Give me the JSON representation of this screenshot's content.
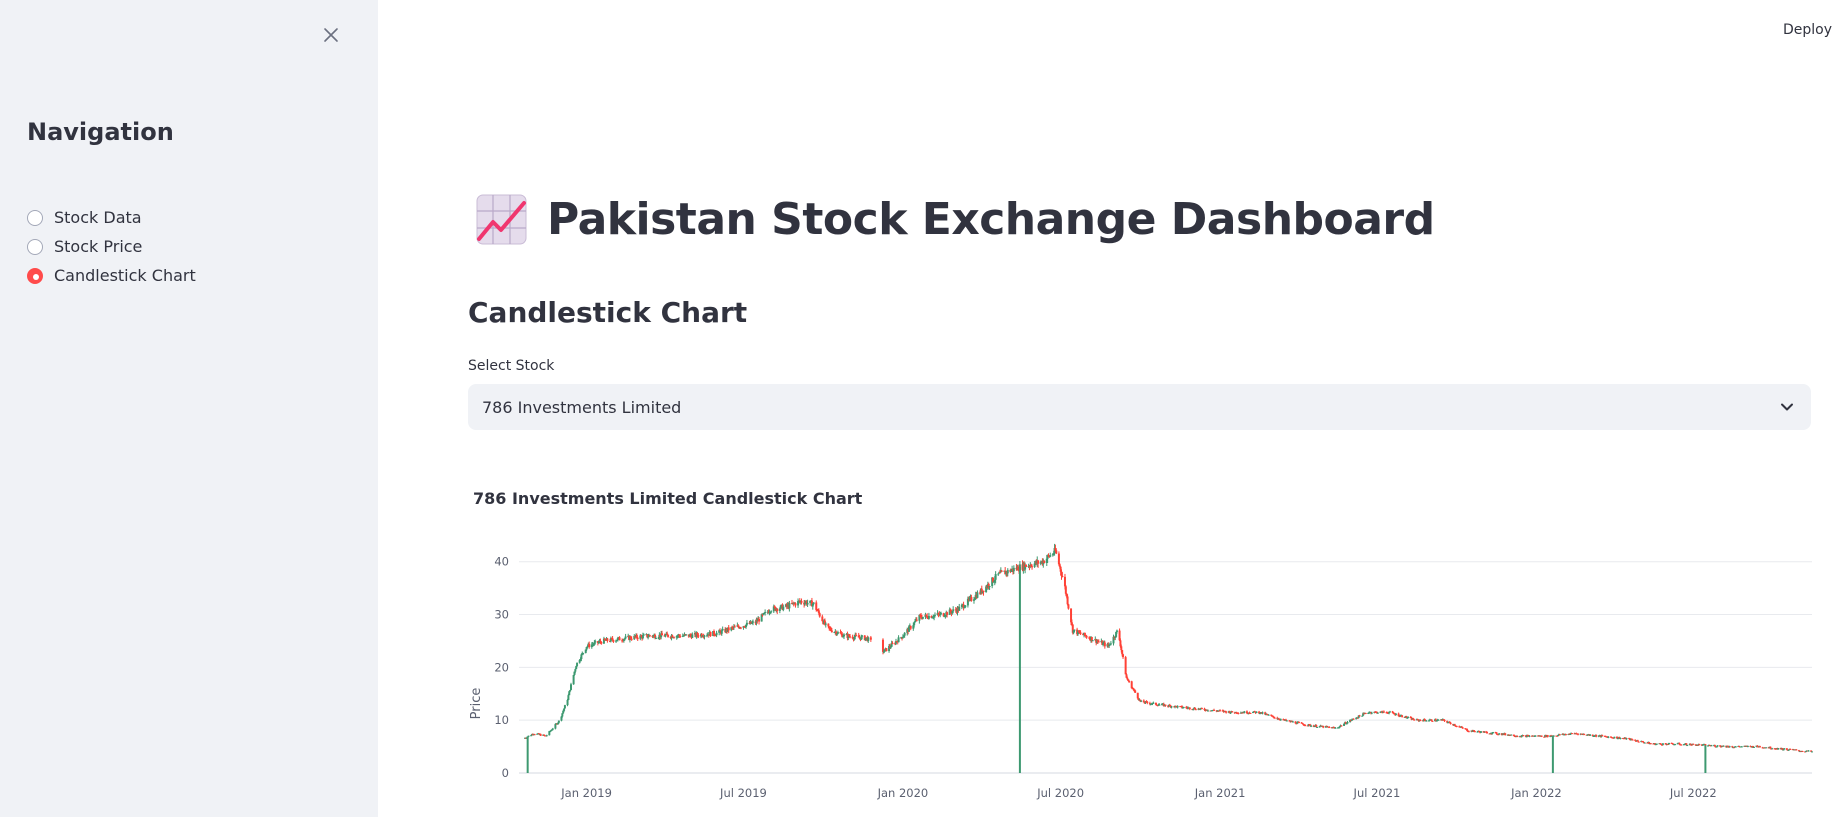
{
  "sidebar": {
    "title": "Navigation",
    "options": [
      "Stock Data",
      "Stock Price",
      "Candlestick Chart"
    ],
    "selected": "Candlestick Chart"
  },
  "header": {
    "deploy_label": "Deploy"
  },
  "main": {
    "title": "Pakistan Stock Exchange Dashboard",
    "icon": "chart-increasing-icon",
    "section_title": "Candlestick Chart",
    "select_label": "Select Stock",
    "select_value": "786 Investments Limited"
  },
  "colors": {
    "accent": "#ff4b4b",
    "increasing": "#3d9970",
    "decreasing": "#ff4136",
    "sidebar_bg": "#f0f2f6",
    "text": "#31333f"
  },
  "chart_data": {
    "type": "candlestick",
    "title": "786 Investments Limited Candlestick Chart",
    "xlabel": "",
    "ylabel": "Price",
    "x_ticks": [
      "Jan 2019",
      "Jul 2019",
      "Jan 2020",
      "Jul 2020",
      "Jan 2021",
      "Jul 2021",
      "Jan 2022",
      "Jul 2022"
    ],
    "y_ticks": [
      0,
      10,
      20,
      30,
      40
    ],
    "xlim": [
      "2018-10-15",
      "2022-11-15"
    ],
    "ylim": [
      0,
      46
    ],
    "grid": true,
    "approx_close_series": [
      [
        "2018-10-20",
        6.5
      ],
      [
        "2018-11-01",
        7.5
      ],
      [
        "2018-11-15",
        7.0
      ],
      [
        "2018-12-01",
        10.0
      ],
      [
        "2018-12-10",
        14.0
      ],
      [
        "2018-12-20",
        20.5
      ],
      [
        "2019-01-01",
        24.0
      ],
      [
        "2019-01-20",
        25.0
      ],
      [
        "2019-02-15",
        25.5
      ],
      [
        "2019-03-15",
        26.0
      ],
      [
        "2019-05-01",
        26.0
      ],
      [
        "2019-06-01",
        26.5
      ],
      [
        "2019-06-20",
        27.5
      ],
      [
        "2019-07-15",
        28.5
      ],
      [
        "2019-08-01",
        31.0
      ],
      [
        "2019-08-20",
        31.5
      ],
      [
        "2019-09-05",
        32.5
      ],
      [
        "2019-09-20",
        32.0
      ],
      [
        "2019-10-05",
        27.5
      ],
      [
        "2019-10-25",
        26.0
      ],
      [
        "2019-11-20",
        25.5
      ],
      [
        "2019-12-10",
        23.0
      ],
      [
        "2020-01-01",
        26.0
      ],
      [
        "2020-01-20",
        29.5
      ],
      [
        "2020-02-15",
        30.0
      ],
      [
        "2020-03-05",
        31.0
      ],
      [
        "2020-04-01",
        34.5
      ],
      [
        "2020-04-20",
        37.5
      ],
      [
        "2020-05-15",
        39.0
      ],
      [
        "2020-06-10",
        40.0
      ],
      [
        "2020-06-25",
        42.0
      ],
      [
        "2020-07-05",
        36.0
      ],
      [
        "2020-07-15",
        27.0
      ],
      [
        "2020-08-05",
        25.5
      ],
      [
        "2020-08-25",
        24.0
      ],
      [
        "2020-09-05",
        27.0
      ],
      [
        "2020-09-15",
        18.0
      ],
      [
        "2020-10-01",
        13.5
      ],
      [
        "2020-10-20",
        13.0
      ],
      [
        "2020-11-15",
        12.5
      ],
      [
        "2020-12-15",
        12.0
      ],
      [
        "2021-01-15",
        11.5
      ],
      [
        "2021-02-15",
        11.5
      ],
      [
        "2021-03-15",
        10.0
      ],
      [
        "2021-04-15",
        9.0
      ],
      [
        "2021-05-15",
        8.5
      ],
      [
        "2021-06-01",
        10.0
      ],
      [
        "2021-06-20",
        11.5
      ],
      [
        "2021-07-15",
        11.5
      ],
      [
        "2021-08-15",
        10.0
      ],
      [
        "2021-09-15",
        10.0
      ],
      [
        "2021-10-15",
        8.0
      ],
      [
        "2021-11-15",
        7.5
      ],
      [
        "2021-12-15",
        7.0
      ],
      [
        "2022-01-15",
        7.0
      ],
      [
        "2022-02-15",
        7.5
      ],
      [
        "2022-03-15",
        7.0
      ],
      [
        "2022-04-15",
        6.5
      ],
      [
        "2022-05-15",
        5.5
      ],
      [
        "2022-06-15",
        5.5
      ],
      [
        "2022-08-15",
        5.0
      ],
      [
        "2022-09-15",
        5.0
      ],
      [
        "2022-10-15",
        4.5
      ],
      [
        "2022-11-15",
        4.0
      ]
    ],
    "spikes_to_zero": [
      "2018-10-25",
      "2020-05-15",
      "2022-01-20",
      "2022-07-15"
    ]
  }
}
